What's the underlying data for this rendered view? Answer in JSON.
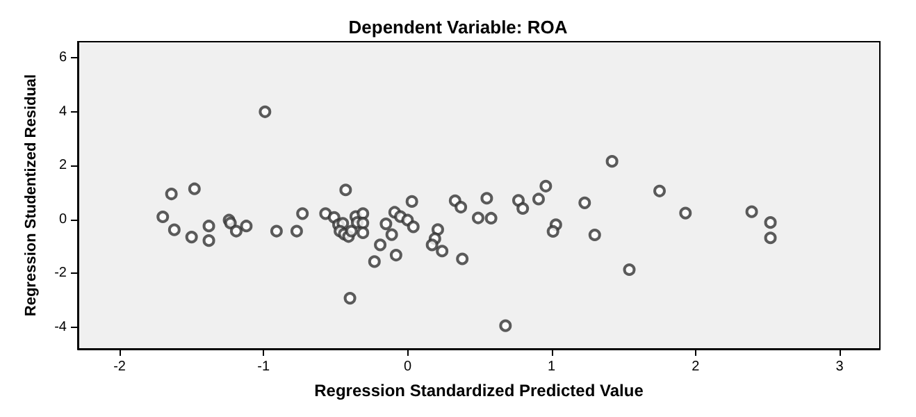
{
  "chart_data": {
    "type": "scatter",
    "title": "Dependent Variable: ROA",
    "xlabel": "Regression Standardized Predicted Value",
    "ylabel": "Regression Studentized Residual",
    "xlim": [
      -2.29,
      3.28
    ],
    "xticks": [
      -2,
      -1,
      0,
      1,
      2,
      3
    ],
    "ylim": [
      -4.8,
      6.6
    ],
    "yticks": [
      -4,
      -2,
      0,
      2,
      4,
      6
    ],
    "grid": false,
    "marker": "circle",
    "series": [
      {
        "color": "#333333",
        "x": [
          -0.99,
          -1.64,
          -1.48,
          -1.7,
          -1.62,
          -1.5,
          -1.38,
          -1.38,
          -1.24,
          -1.23,
          -1.19,
          -1.12,
          -0.91,
          -0.77,
          -0.73,
          -0.57,
          -0.51,
          -0.43,
          -0.48,
          -0.45,
          -0.47,
          -0.44,
          -0.41,
          -0.39,
          -0.36,
          -0.35,
          -0.31,
          -0.31,
          -0.31,
          -0.4,
          -0.15,
          -0.09,
          -0.05,
          0.0,
          0.04,
          0.03,
          -0.11,
          -0.19,
          -0.23,
          -0.08,
          0.21,
          0.19,
          0.17,
          0.24,
          0.38,
          0.33,
          0.37,
          0.55,
          0.49,
          0.58,
          0.77,
          0.8,
          0.91,
          0.96,
          1.23,
          1.42,
          1.03,
          1.01,
          1.3,
          1.54,
          1.75,
          1.93,
          2.39,
          2.52,
          2.52,
          0.68
        ],
        "values": [
          4.0,
          0.95,
          1.14,
          0.1,
          -0.38,
          -0.65,
          -0.24,
          -0.78,
          -0.02,
          -0.13,
          -0.43,
          -0.24,
          -0.43,
          -0.43,
          0.22,
          0.22,
          0.08,
          1.1,
          -0.19,
          -0.14,
          -0.43,
          -0.54,
          -0.63,
          -0.43,
          0.11,
          -0.11,
          0.22,
          -0.13,
          -0.49,
          -2.92,
          -0.16,
          0.27,
          0.11,
          -0.02,
          -0.27,
          0.67,
          -0.56,
          -0.94,
          -1.56,
          -1.32,
          -0.37,
          -0.71,
          -0.94,
          -1.17,
          -1.46,
          0.7,
          0.46,
          0.79,
          0.06,
          0.05,
          0.71,
          0.41,
          0.76,
          1.24,
          0.62,
          2.16,
          -0.19,
          -0.44,
          -0.57,
          -1.86,
          1.06,
          0.24,
          0.29,
          -0.11,
          -0.68,
          -3.94
        ]
      }
    ]
  }
}
